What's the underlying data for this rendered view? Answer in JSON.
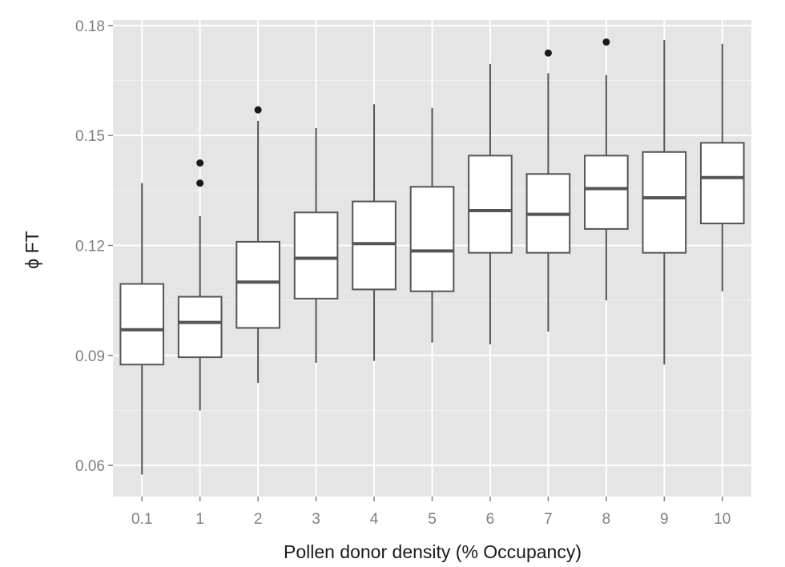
{
  "chart_data": {
    "type": "box",
    "xlabel": "Pollen donor density (% Occupancy)",
    "ylabel": "ϕ FT",
    "ylim": [
      0.0515,
      0.1815
    ],
    "y_ticks": [
      0.06,
      0.09,
      0.12,
      0.15,
      0.18
    ],
    "y_tick_labels": [
      "0.06",
      "0.09",
      "0.12",
      "0.15",
      "0.18"
    ],
    "grid": true,
    "categories": [
      "0.1",
      "1",
      "2",
      "3",
      "4",
      "5",
      "6",
      "7",
      "8",
      "9",
      "10"
    ],
    "boxes": [
      {
        "category": "0.1",
        "min": 0.0575,
        "q1": 0.0875,
        "median": 0.097,
        "q3": 0.1095,
        "max": 0.137,
        "outliers": []
      },
      {
        "category": "1",
        "min": 0.075,
        "q1": 0.0895,
        "median": 0.099,
        "q3": 0.106,
        "max": 0.128,
        "outliers": [
          0.137,
          0.1425
        ]
      },
      {
        "category": "2",
        "min": 0.0825,
        "q1": 0.0975,
        "median": 0.11,
        "q3": 0.121,
        "max": 0.154,
        "outliers": [
          0.157
        ]
      },
      {
        "category": "3",
        "min": 0.088,
        "q1": 0.1055,
        "median": 0.1165,
        "q3": 0.129,
        "max": 0.152,
        "outliers": []
      },
      {
        "category": "4",
        "min": 0.0885,
        "q1": 0.108,
        "median": 0.1205,
        "q3": 0.132,
        "max": 0.1585,
        "outliers": []
      },
      {
        "category": "5",
        "min": 0.0935,
        "q1": 0.1075,
        "median": 0.1185,
        "q3": 0.136,
        "max": 0.1575,
        "outliers": []
      },
      {
        "category": "6",
        "min": 0.093,
        "q1": 0.118,
        "median": 0.1295,
        "q3": 0.1445,
        "max": 0.1695,
        "outliers": []
      },
      {
        "category": "7",
        "min": 0.0965,
        "q1": 0.118,
        "median": 0.1285,
        "q3": 0.1395,
        "max": 0.167,
        "outliers": [
          0.1725
        ]
      },
      {
        "category": "8",
        "min": 0.105,
        "q1": 0.1245,
        "median": 0.1355,
        "q3": 0.1445,
        "max": 0.1665,
        "outliers": [
          0.1755
        ]
      },
      {
        "category": "9",
        "min": 0.0875,
        "q1": 0.118,
        "median": 0.133,
        "q3": 0.1455,
        "max": 0.176,
        "outliers": []
      },
      {
        "category": "10",
        "min": 0.1075,
        "q1": 0.126,
        "median": 0.1385,
        "q3": 0.148,
        "max": 0.175,
        "outliers": []
      }
    ],
    "colors": {
      "panel": "#e5e5e5",
      "grid_major": "#ffffff",
      "grid_minor": "#f2f2f2",
      "box_fill": "#ffffff",
      "box_line": "#555555",
      "outlier": "#1a1a1a",
      "tick_label": "#7f7f7f",
      "axis_title": "#1a1a1a"
    }
  }
}
